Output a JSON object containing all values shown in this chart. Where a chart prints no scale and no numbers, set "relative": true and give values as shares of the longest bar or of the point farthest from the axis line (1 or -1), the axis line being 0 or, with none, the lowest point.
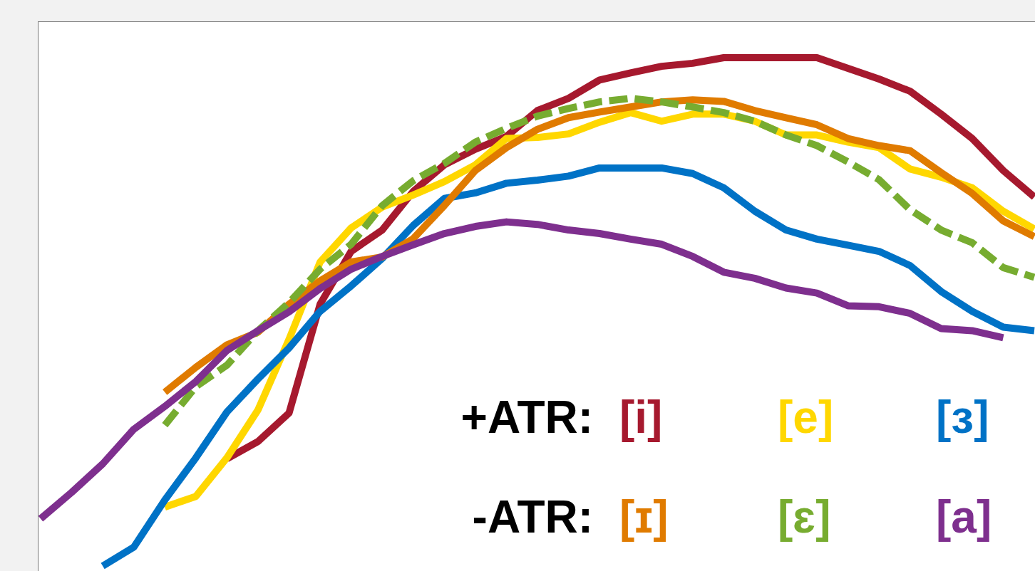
{
  "chart_data": {
    "type": "line",
    "relative": true,
    "grid": false,
    "marker": "none",
    "line_style": "solid",
    "annotations": [
      "+ATR:",
      "-ATR:"
    ],
    "categories": [
      null,
      null,
      null,
      null,
      null,
      null,
      null,
      null,
      null,
      null,
      null,
      null,
      null,
      null,
      null,
      null,
      null,
      null,
      null,
      null,
      null,
      null,
      null,
      null,
      null,
      null,
      null,
      null,
      null,
      null,
      null,
      null,
      null
    ],
    "series": [
      {
        "name": "[i]",
        "color": "#a6192e",
        "values": [
          null,
          null,
          null,
          null,
          null,
          null,
          0.211,
          0.245,
          0.301,
          0.515,
          0.619,
          0.661,
          0.737,
          0.789,
          0.82,
          0.845,
          0.896,
          0.92,
          0.956,
          0.97,
          0.983,
          0.989,
          1,
          1,
          1,
          1,
          0.979,
          0.958,
          0.934,
          0.889,
          0.841,
          0.778,
          0.726
        ]
      },
      {
        "name": "[e]",
        "color": "#ffd700",
        "values": [
          null,
          null,
          null,
          null,
          0.116,
          0.137,
          0.213,
          0.307,
          0.446,
          0.598,
          0.665,
          0.706,
          0.73,
          0.756,
          0.789,
          0.841,
          0.843,
          0.85,
          0.873,
          0.892,
          0.875,
          0.889,
          0.889,
          0.875,
          0.848,
          0.848,
          0.834,
          0.823,
          0.781,
          0.765,
          0.744,
          0.698,
          0.663
        ]
      },
      {
        "name": "[ɜ]",
        "color": "#0072c6",
        "values": [
          null,
          null,
          0.0,
          0.037,
          0.13,
          0.213,
          0.303,
          0.368,
          0.429,
          0.501,
          0.551,
          0.605,
          0.67,
          0.723,
          0.734,
          0.753,
          0.759,
          0.767,
          0.783,
          0.783,
          0.783,
          0.772,
          0.744,
          0.698,
          0.661,
          0.643,
          0.631,
          0.619,
          0.591,
          0.54,
          0.501,
          0.47,
          0.463
        ]
      },
      {
        "name": "[ɪ]",
        "color": "#e07b00",
        "values": [
          null,
          null,
          null,
          null,
          0.342,
          0.391,
          0.435,
          0.46,
          0.515,
          0.561,
          0.598,
          0.608,
          0.644,
          0.709,
          0.778,
          0.823,
          0.859,
          0.882,
          0.893,
          0.903,
          0.913,
          0.917,
          0.914,
          0.896,
          0.882,
          0.868,
          0.841,
          0.827,
          0.817,
          0.774,
          0.733,
          0.679,
          0.648
        ]
      },
      {
        "name": "[ɛ]",
        "color": "#77ac30",
        "line_style": "dashed",
        "values": [
          null,
          null,
          null,
          null,
          0.277,
          0.353,
          0.395,
          0.463,
          0.518,
          0.584,
          0.633,
          0.709,
          0.758,
          0.792,
          0.834,
          0.861,
          0.885,
          0.9,
          0.913,
          0.92,
          0.913,
          0.903,
          0.892,
          0.875,
          0.848,
          0.827,
          0.795,
          0.76,
          0.701,
          0.661,
          0.636,
          0.587,
          0.568
        ]
      },
      {
        "name": "[a]",
        "color": "#7e2f8e",
        "values": [
          0.093,
          0.145,
          0.201,
          0.269,
          0.314,
          0.363,
          0.424,
          0.463,
          0.5,
          0.546,
          0.584,
          0.609,
          0.632,
          0.654,
          0.668,
          0.677,
          0.672,
          0.661,
          0.654,
          0.643,
          0.633,
          0.609,
          0.578,
          0.566,
          0.547,
          0.537,
          0.512,
          0.51,
          0.497,
          0.467,
          0.463,
          0.449,
          null
        ]
      }
    ]
  }
}
